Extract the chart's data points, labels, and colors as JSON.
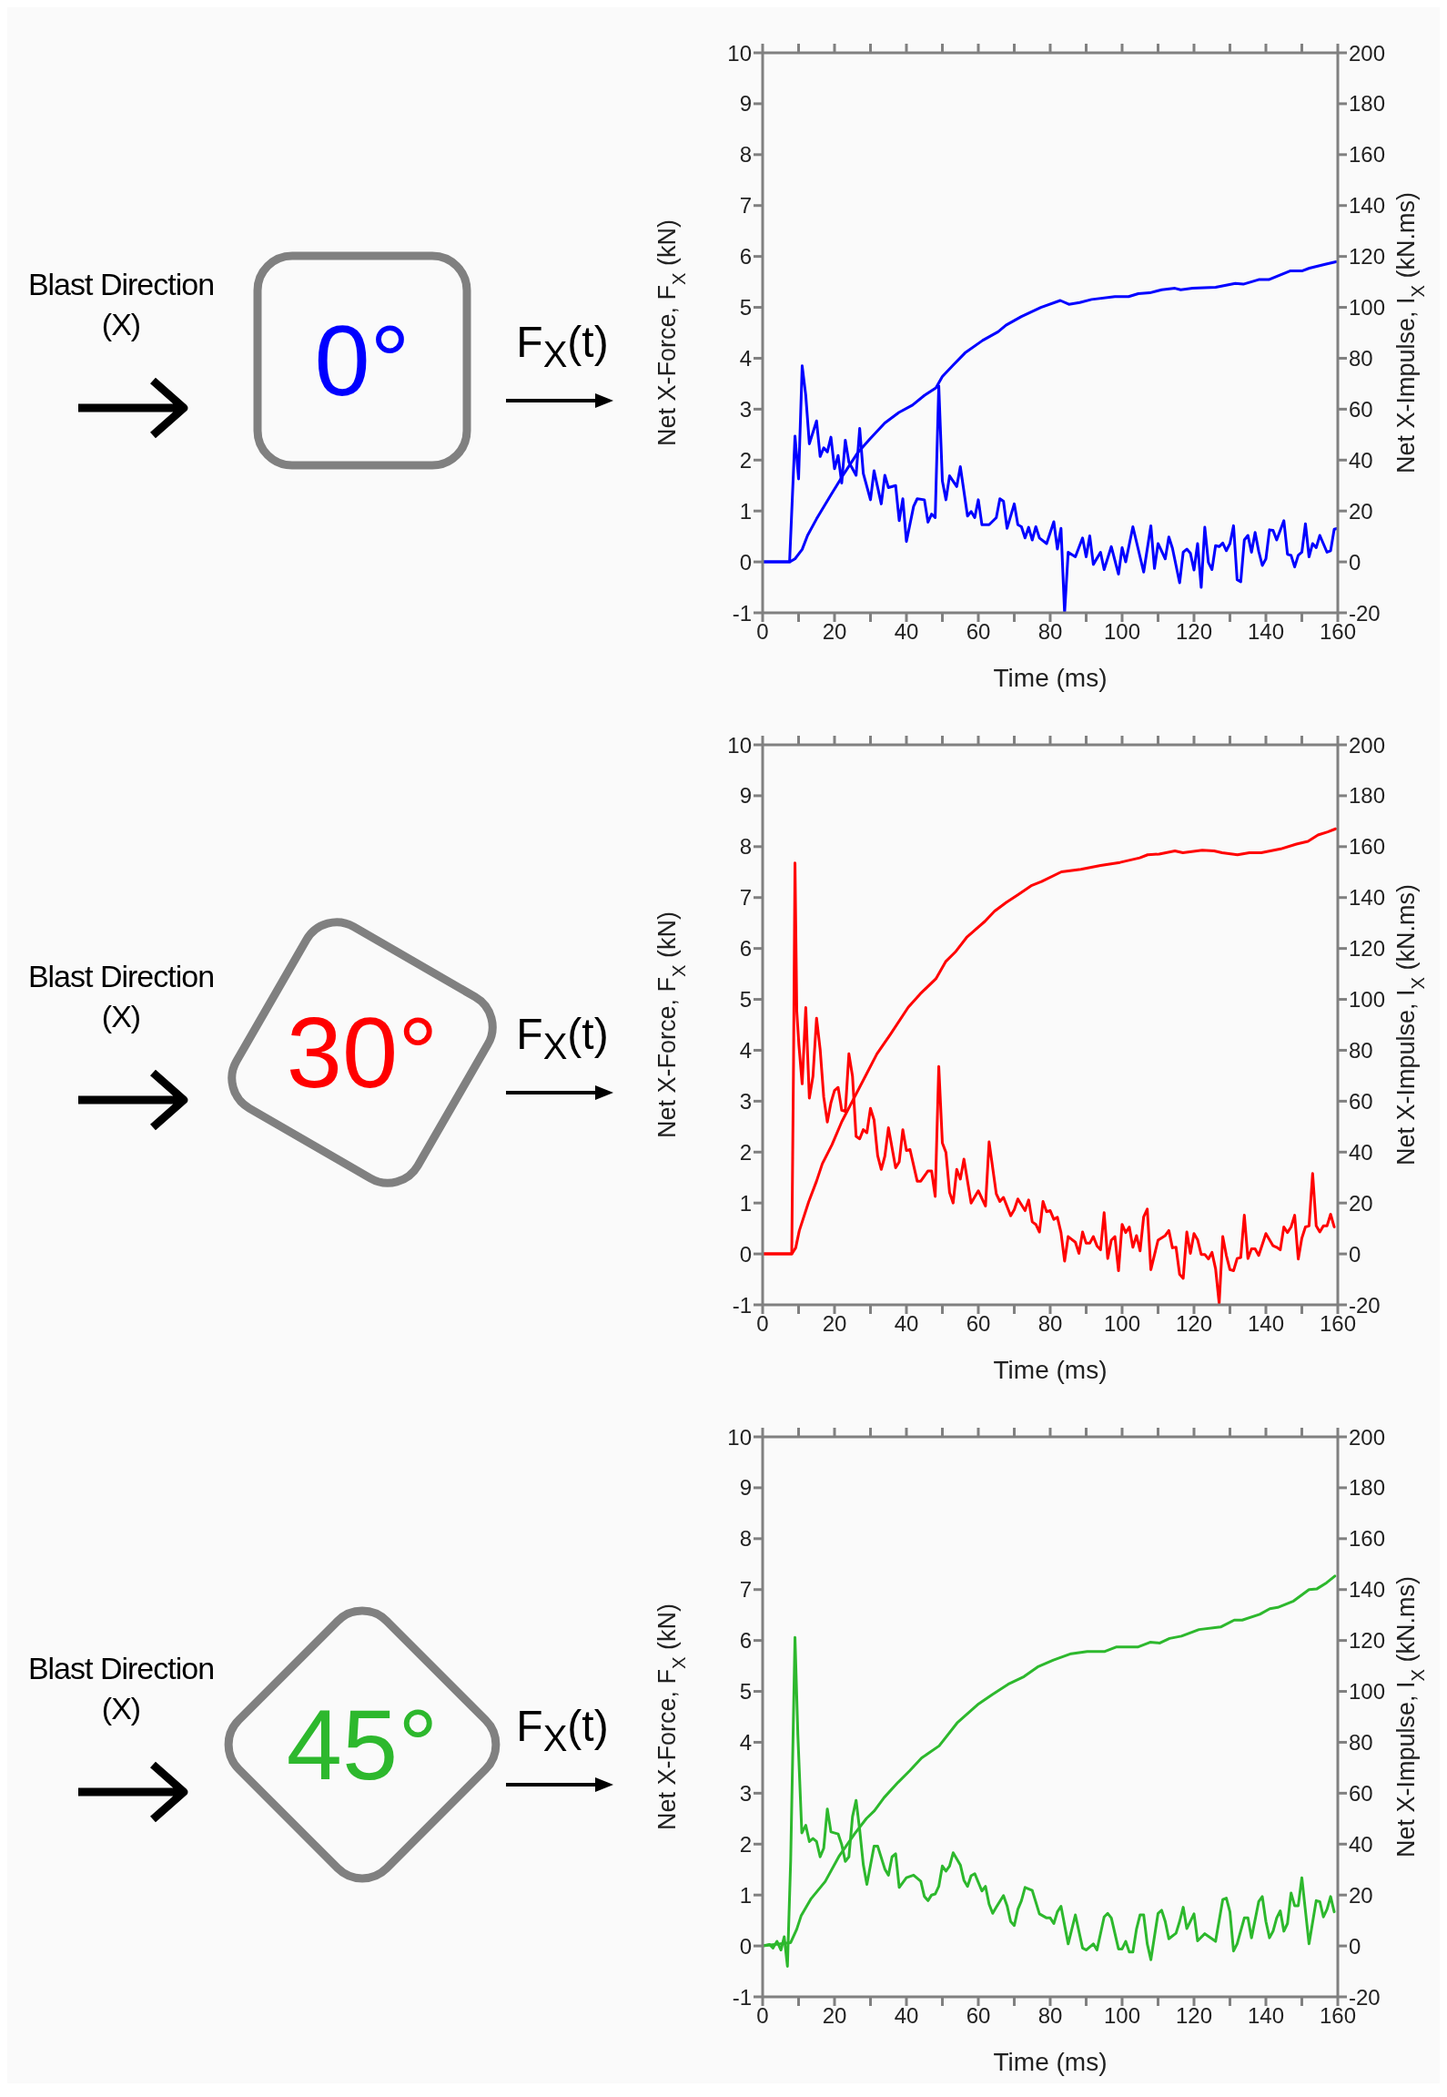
{
  "chart_data": [
    {
      "type": "line",
      "xlabel": "Time (ms)",
      "ylabel": "Net X-Force, F$_{X}$ (kN)",
      "y2label": "Net X-Impulse, I$_{X}$ (kN.ms)",
      "xlim": [
        0,
        160
      ],
      "xticks": [
        0,
        {
          "value": 10,
          "label": null
        },
        20,
        {
          "value": 30,
          "label": null
        },
        40,
        {
          "value": 50,
          "label": null
        },
        60,
        {
          "value": 70,
          "label": null
        },
        80,
        {
          "value": 90,
          "label": null
        },
        100,
        {
          "value": 110,
          "label": null
        },
        120,
        {
          "value": 130,
          "label": null
        },
        140,
        {
          "value": 150,
          "label": null
        },
        160
      ],
      "ylim": [
        -1,
        10
      ],
      "yticks": [
        -1,
        0,
        1,
        2,
        3,
        4,
        5,
        6,
        7,
        8,
        9,
        10
      ],
      "y2lim": [
        -20,
        200
      ],
      "y2ticks": [
        -20,
        0,
        20,
        40,
        60,
        80,
        100,
        120,
        140,
        160,
        180,
        200
      ],
      "annotations": [
        "Blast Direction (X)",
        "0°",
        "F$_{X}$(t)"
      ],
      "series": [
        {
          "color": "#0000ff",
          "x": [
            0,
            7.5,
            9,
            10,
            11,
            12,
            13,
            15,
            16,
            17,
            18,
            19,
            20,
            21,
            22,
            23,
            24,
            26,
            27,
            28,
            30,
            31,
            33,
            34,
            35,
            37,
            38,
            39,
            40,
            42,
            43,
            45,
            46,
            47,
            48,
            49,
            50,
            51,
            52,
            54,
            55,
            57,
            58,
            59,
            60,
            61,
            63,
            65,
            66,
            67,
            68,
            70,
            71,
            72,
            73,
            74,
            75,
            76,
            77,
            79,
            81,
            82,
            83,
            84,
            85,
            87,
            89,
            90,
            91,
            92,
            94,
            95,
            97,
            99,
            100,
            101,
            103,
            106,
            108,
            109,
            110,
            112,
            113,
            114,
            116,
            117,
            118,
            119,
            120,
            121,
            122,
            123,
            124,
            125,
            126,
            127,
            128,
            129,
            130,
            131,
            132,
            133,
            134,
            135,
            136,
            137,
            138,
            139,
            140,
            141,
            142,
            143,
            145,
            146,
            147,
            148,
            149,
            150,
            151,
            152,
            153,
            154,
            155,
            157,
            158,
            159,
            160
          ],
          "values": [
            0,
            0,
            2.47,
            1.63,
            3.85,
            3.27,
            2.32,
            2.77,
            2.07,
            2.24,
            2.16,
            2.45,
            1.83,
            2.09,
            1.55,
            2.39,
            1.96,
            1.7,
            2.62,
            1.74,
            1.22,
            1.79,
            1.14,
            1.7,
            1.46,
            1.5,
            0.81,
            1.24,
            0.4,
            1.09,
            1.24,
            1.22,
            0.78,
            0.94,
            0.87,
            3.46,
            1.59,
            1.22,
            1.69,
            1.48,
            1.87,
            0.9,
            0.99,
            0.87,
            1.22,
            0.73,
            0.73,
            0.87,
            1.24,
            1.19,
            0.66,
            1.14,
            0.73,
            0.69,
            0.47,
            0.68,
            0.43,
            0.69,
            0.47,
            0.36,
            0.79,
            0.25,
            0.66,
            -1,
            0.19,
            0.1,
            0.47,
            0.1,
            0.51,
            -0.05,
            0.19,
            -0.15,
            0.3,
            -0.24,
            0.28,
            0,
            0.69,
            -0.2,
            0.71,
            -0.13,
            0.36,
            0.06,
            0.49,
            0.27,
            -0.41,
            0.19,
            0.25,
            0.17,
            -0.16,
            0.36,
            -0.5,
            0.68,
            -0.01,
            -0.15,
            0.32,
            0.3,
            0.37,
            0.22,
            0.36,
            0.71,
            -0.35,
            -0.39,
            0.43,
            0.52,
            0.19,
            0.58,
            0.21,
            -0.07,
            0.06,
            0.63,
            0.62,
            0.43,
            0.81,
            0.15,
            0.13,
            -0.1,
            0.13,
            0.19,
            0.75,
            0.1,
            0.36,
            0.28,
            0.52,
            0.19,
            0.22,
            0.64,
            0.66
          ]
        },
        {
          "color": "#0000ff",
          "axis": "y2",
          "x": [
            0,
            7.5,
            9,
            11,
            12.5,
            15,
            19,
            22.7,
            26.5,
            29.8,
            34,
            37.9,
            41.7,
            45,
            48.2,
            50,
            53,
            56.3,
            61.2,
            65.5,
            67.7,
            72,
            77.4,
            82.8,
            85.2,
            88.2,
            91.5,
            98,
            101.8,
            104.5,
            107.7,
            111,
            114.7,
            116.3,
            119.6,
            126,
            131.5,
            133.7,
            138,
            140.8,
            146.7,
            150,
            152.1,
            156.5,
            159.5
          ],
          "values": [
            0,
            0,
            1.2,
            4.9,
            10.4,
            16.9,
            26.3,
            34.8,
            43,
            48.2,
            54.6,
            58.7,
            61.6,
            65.4,
            68.4,
            72.8,
            77.3,
            82.1,
            87,
            90.4,
            93,
            96.4,
            100,
            102.7,
            101.2,
            101.9,
            103.1,
            104.2,
            104.2,
            105.4,
            105.7,
            106.9,
            107.5,
            106.9,
            107.5,
            107.9,
            109.4,
            109.1,
            110.9,
            110.9,
            114.3,
            114.3,
            115.4,
            116.9,
            117.9
          ]
        }
      ]
    },
    {
      "type": "line",
      "xlabel": "Time (ms)",
      "ylabel": "Net X-Force, F$_{X}$ (kN)",
      "y2label": "Net X-Impulse, I$_{X}$ (kN.ms)",
      "xlim": [
        0,
        160
      ],
      "xticks": [
        0,
        {
          "value": 10,
          "label": null
        },
        20,
        {
          "value": 30,
          "label": null
        },
        40,
        {
          "value": 50,
          "label": null
        },
        60,
        {
          "value": 70,
          "label": null
        },
        80,
        {
          "value": 90,
          "label": null
        },
        100,
        {
          "value": 110,
          "label": null
        },
        120,
        {
          "value": 130,
          "label": null
        },
        140,
        {
          "value": 150,
          "label": null
        },
        160
      ],
      "ylim": [
        -1,
        10
      ],
      "yticks": [
        -1,
        0,
        1,
        2,
        3,
        4,
        5,
        6,
        7,
        8,
        9,
        10
      ],
      "y2lim": [
        -20,
        200
      ],
      "y2ticks": [
        -20,
        0,
        20,
        40,
        60,
        80,
        100,
        120,
        140,
        160,
        180,
        200
      ],
      "annotations": [
        "Blast Direction (X)",
        "30°",
        "F$_{X}$(t)"
      ],
      "series": [
        {
          "color": "#ff0000",
          "x": [
            0,
            8.1,
            8.6,
            9,
            9.5,
            10.1,
            11,
            12,
            13,
            14,
            15,
            16,
            17,
            18,
            19,
            20,
            21,
            22,
            23,
            24,
            25,
            26,
            27,
            28,
            29,
            30,
            31,
            32,
            33,
            34,
            35,
            37,
            38,
            39,
            40,
            41,
            43,
            44,
            46,
            47,
            48,
            49,
            50,
            51,
            52,
            53,
            54,
            55,
            56,
            58,
            60,
            62,
            63,
            65,
            66,
            67,
            69,
            70,
            71,
            73,
            74,
            75,
            76,
            77,
            78,
            79,
            80,
            81,
            82,
            83,
            84,
            85,
            87,
            88,
            89,
            90,
            91,
            92,
            93,
            94,
            95,
            96,
            97,
            98,
            99,
            100,
            101,
            102,
            103,
            104,
            105,
            106,
            107,
            108,
            110,
            112,
            113,
            114,
            115,
            116,
            117,
            118,
            119,
            120,
            121,
            122,
            123,
            124,
            125,
            126,
            127,
            128,
            129,
            130,
            131,
            132,
            133,
            134,
            135,
            136,
            137,
            138,
            140,
            142,
            143,
            144,
            145,
            146,
            147,
            148,
            149,
            150,
            151,
            152,
            153,
            154,
            155,
            156,
            157,
            158,
            159
          ],
          "values": [
            0,
            0,
            3.79,
            7.68,
            4.76,
            4.1,
            3.34,
            4.84,
            3.06,
            3.49,
            4.63,
            4.02,
            3.08,
            2.59,
            2.97,
            3.21,
            3.27,
            2.82,
            2.8,
            3.93,
            3.49,
            2.31,
            2.26,
            2.44,
            2.38,
            2.86,
            2.63,
            1.93,
            1.66,
            1.92,
            2.48,
            1.69,
            1.81,
            2.44,
            2.03,
            2.05,
            1.43,
            1.43,
            1.63,
            1.63,
            1.13,
            3.68,
            2.18,
            1.99,
            1.21,
            1,
            1.66,
            1.47,
            1.86,
            1,
            1.24,
            0.94,
            2.2,
            1.18,
            1.03,
            1.11,
            0.75,
            0.87,
            1.08,
            0.85,
            1.06,
            0.63,
            0.58,
            0.43,
            1.03,
            0.83,
            0.85,
            0.68,
            0.72,
            0.42,
            -0.14,
            0.34,
            0.23,
            0.01,
            0.43,
            0.21,
            0.21,
            0.34,
            0.16,
            0.08,
            0.81,
            -0.09,
            0.27,
            0.34,
            -0.33,
            0.58,
            0.42,
            0.53,
            0.13,
            0.36,
            0.06,
            0.73,
            0.88,
            -0.31,
            0.27,
            0.36,
            0.46,
            0.12,
            0.13,
            -0.4,
            -0.48,
            0.43,
            0.01,
            0.4,
            0.28,
            -0.01,
            -0.01,
            -0.1,
            0.03,
            -0.29,
            -0.97,
            0.34,
            -0.03,
            -0.31,
            -0.33,
            -0.09,
            -0.07,
            0.76,
            -0.09,
            0.1,
            0.1,
            -0.03,
            0.4,
            0.16,
            0.13,
            0.08,
            0.53,
            0.42,
            0.53,
            0.76,
            -0.1,
            0.31,
            0.53,
            0.55,
            1.58,
            0.55,
            0.43,
            0.55,
            0.55,
            0.78,
            0.53
          ]
        },
        {
          "color": "#ff0000",
          "axis": "y2",
          "x": [
            0,
            8.1,
            9.2,
            10.2,
            12.8,
            15,
            16.6,
            19.3,
            22,
            25.3,
            28.6,
            31.8,
            35.6,
            40.5,
            43.8,
            48.2,
            50.9,
            53.6,
            56.9,
            61.8,
            64.5,
            67.8,
            71,
            74.9,
            77.6,
            83.1,
            88.5,
            94,
            99.4,
            104.9,
            107.1,
            110.3,
            114.7,
            116.9,
            122.3,
            125.6,
            127.8,
            132.1,
            135.4,
            138.7,
            144.1,
            148.5,
            151.7,
            154.5,
            157.2,
            159.4
          ],
          "values": [
            0,
            0,
            2.4,
            9.1,
            20.4,
            28.6,
            35.4,
            42.9,
            51.9,
            60.9,
            69.9,
            78.6,
            86.4,
            96.9,
            102.1,
            108.1,
            114.8,
            118.6,
            124.6,
            130.6,
            134.6,
            138.1,
            141.1,
            144.8,
            146.3,
            150.1,
            151.1,
            152.6,
            153.8,
            155.6,
            156.8,
            157.1,
            158.3,
            157.6,
            158.6,
            158.3,
            157.6,
            156.8,
            157.6,
            157.6,
            159.1,
            161,
            162.1,
            164.6,
            165.8,
            167
          ]
        }
      ]
    },
    {
      "type": "line",
      "xlabel": "Time (ms)",
      "ylabel": "Net X-Force, F$_{X}$ (kN)",
      "y2label": "Net X-Impulse, I$_{X}$ (kN.ms)",
      "xlim": [
        0,
        160
      ],
      "xticks": [
        0,
        {
          "value": 10,
          "label": null
        },
        20,
        {
          "value": 30,
          "label": null
        },
        40,
        {
          "value": 50,
          "label": null
        },
        60,
        {
          "value": 70,
          "label": null
        },
        80,
        {
          "value": 90,
          "label": null
        },
        100,
        {
          "value": 110,
          "label": null
        },
        120,
        {
          "value": 130,
          "label": null
        },
        140,
        {
          "value": 150,
          "label": null
        },
        160
      ],
      "ylim": [
        -1,
        10
      ],
      "yticks": [
        -1,
        0,
        1,
        2,
        3,
        4,
        5,
        6,
        7,
        8,
        9,
        10
      ],
      "y2lim": [
        -20,
        200
      ],
      "y2ticks": [
        -20,
        0,
        20,
        40,
        60,
        80,
        100,
        120,
        140,
        160,
        180,
        200
      ],
      "annotations": [
        "Blast Direction (X)",
        "45°",
        "F$_{X}$(t)"
      ],
      "series": [
        {
          "color": "#2db82d",
          "x": [
            0,
            1.9,
            2.9,
            4,
            5.1,
            6,
            6.9,
            7.8,
            9,
            9.8,
            10.9,
            12,
            13,
            14,
            15,
            16,
            17,
            18,
            19,
            21,
            22,
            23,
            24,
            25,
            26,
            27,
            28,
            29,
            31,
            32,
            34,
            35,
            36,
            37,
            38,
            40,
            42,
            44,
            45,
            46,
            47,
            48,
            49,
            50,
            51,
            52,
            53,
            55,
            56,
            57,
            58,
            59,
            61,
            62,
            63,
            64,
            65,
            67,
            68,
            69,
            70,
            71,
            72,
            73,
            75,
            77,
            79,
            80,
            81,
            82,
            83,
            85,
            87,
            89,
            90,
            92,
            93,
            95,
            96,
            97,
            99,
            100,
            101,
            102,
            103,
            104,
            105,
            106,
            107,
            108,
            110,
            111,
            112,
            113,
            115,
            116,
            117,
            118,
            120,
            121,
            123,
            124,
            126,
            128,
            129,
            130,
            131,
            132,
            134,
            135,
            136,
            138,
            139,
            140,
            141,
            142,
            143,
            144,
            145,
            146,
            147,
            148,
            149,
            150,
            152,
            154,
            155,
            156,
            157,
            158,
            159
          ],
          "values": [
            0,
            0.03,
            -0.04,
            0.09,
            -0.08,
            0.18,
            -0.4,
            1.68,
            6.06,
            4.15,
            2.22,
            2.37,
            2.05,
            2.11,
            2.05,
            1.75,
            1.92,
            2.69,
            2.24,
            2.2,
            1.99,
            1.66,
            1.75,
            2.54,
            2.86,
            2.28,
            1.6,
            1.21,
            1.96,
            1.96,
            1.51,
            1.39,
            1.75,
            1.81,
            1.15,
            1.34,
            1.39,
            1.27,
            0.97,
            0.89,
            1,
            1.02,
            1.17,
            1.57,
            1.47,
            1.57,
            1.83,
            1.59,
            1.29,
            1.17,
            1.38,
            1.42,
            1.08,
            1.17,
            0.82,
            0.64,
            0.76,
            0.99,
            0.79,
            0.48,
            0.4,
            0.72,
            0.89,
            1.15,
            1.09,
            0.63,
            0.55,
            0.55,
            0.44,
            0.67,
            0.78,
            0.04,
            0.61,
            -0.04,
            -0.08,
            0.04,
            -0.08,
            0.57,
            0.64,
            0.55,
            -0.06,
            -0.06,
            0.09,
            -0.12,
            -0.12,
            0.33,
            0.61,
            0.61,
            0.04,
            -0.27,
            0.64,
            0.7,
            0.48,
            0.14,
            0.25,
            0.48,
            0.76,
            0.34,
            0.63,
            0.1,
            0.24,
            0.19,
            0.09,
            0.91,
            0.94,
            0.67,
            -0.1,
            0.04,
            0.55,
            0.55,
            0.16,
            0.87,
            0.97,
            0.48,
            0.16,
            0.29,
            0.55,
            0.69,
            0.29,
            0.44,
            1.04,
            0.79,
            0.79,
            1.34,
            0.04,
            0.89,
            0.87,
            0.57,
            0.72,
            0.97,
            0.67
          ]
        },
        {
          "color": "#2db82d",
          "axis": "y2",
          "x": [
            0,
            7.8,
            9.5,
            10.7,
            13.5,
            17.4,
            21.2,
            25.6,
            28.9,
            31.1,
            33.8,
            37.7,
            40.9,
            44.2,
            49.1,
            54.1,
            60.1,
            63.9,
            68.3,
            72.7,
            76.5,
            80.9,
            85.8,
            90.3,
            95.2,
            98.5,
            104.5,
            107.8,
            110.5,
            113.2,
            116.5,
            121.4,
            127.4,
            131.2,
            133.4,
            138.3,
            141.1,
            143.3,
            147.7,
            152,
            154.2,
            156.9,
            159.2
          ],
          "values": [
            0,
            1.3,
            6.6,
            11.8,
            18.6,
            25.3,
            35.1,
            44.1,
            50.1,
            53.1,
            58.3,
            64.3,
            68.8,
            73.8,
            78.6,
            87.6,
            95.1,
            98.8,
            102.8,
            105.8,
            109.6,
            112.3,
            114.8,
            115.7,
            115.7,
            117.5,
            117.5,
            119.3,
            119,
            120.8,
            121.7,
            124.3,
            125.3,
            128,
            128,
            130.3,
            132.5,
            133,
            135.5,
            140,
            140.3,
            142.7,
            145.3
          ]
        }
      ]
    }
  ]
}
